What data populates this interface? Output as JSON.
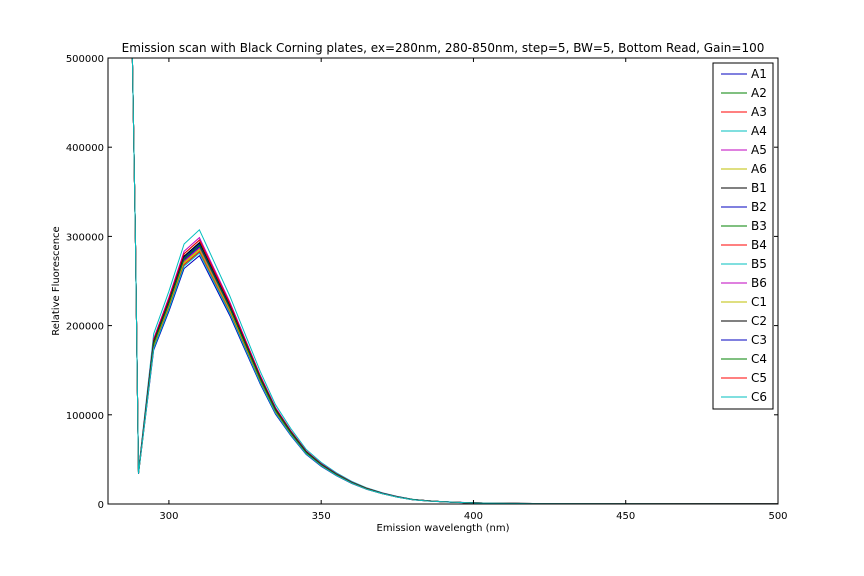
{
  "chart_data": {
    "type": "line",
    "title": "Emission scan with Black Corning plates, ex=280nm, 280-850nm, step=5, BW=5, Bottom Read, Gain=100",
    "xlabel": "Emission wavelength (nm)",
    "ylabel": "Relative Fluorescence",
    "xlim": [
      280,
      500
    ],
    "ylim": [
      0,
      500000
    ],
    "xticks": [
      300,
      350,
      400,
      450,
      500
    ],
    "yticks": [
      0,
      100000,
      200000,
      300000,
      400000,
      500000
    ],
    "grid": false,
    "legend_position": "top-right",
    "x": [
      288,
      289,
      290,
      295,
      300,
      305,
      310,
      315,
      320,
      325,
      330,
      335,
      340,
      345,
      350,
      355,
      360,
      365,
      370,
      375,
      380,
      385,
      390,
      395,
      400,
      410,
      420,
      450,
      500
    ],
    "base_curve": [
      500000,
      300000,
      35000,
      180000,
      225000,
      275000,
      290000,
      255000,
      220000,
      180000,
      140000,
      105000,
      80000,
      58000,
      44000,
      33000,
      24000,
      17000,
      12000,
      8000,
      5000,
      3500,
      2500,
      1800,
      1200,
      800,
      500,
      200,
      100
    ],
    "series": [
      {
        "name": "A1",
        "color": "#0000bf",
        "scale": 0.96
      },
      {
        "name": "A2",
        "color": "#008000",
        "scale": 0.99
      },
      {
        "name": "A3",
        "color": "#ff0000",
        "scale": 1.0
      },
      {
        "name": "A4",
        "color": "#00bfbf",
        "scale": 1.06
      },
      {
        "name": "A5",
        "color": "#bf00bf",
        "scale": 1.03
      },
      {
        "name": "A6",
        "color": "#bfbf00",
        "scale": 0.98
      },
      {
        "name": "B1",
        "color": "#000000",
        "scale": 1.02
      },
      {
        "name": "B2",
        "color": "#0000bf",
        "scale": 0.995
      },
      {
        "name": "B3",
        "color": "#008000",
        "scale": 1.01
      },
      {
        "name": "B4",
        "color": "#ff0000",
        "scale": 1.02
      },
      {
        "name": "B5",
        "color": "#00bfbf",
        "scale": 1.0
      },
      {
        "name": "B6",
        "color": "#bf00bf",
        "scale": 0.99
      },
      {
        "name": "C1",
        "color": "#bfbf00",
        "scale": 0.985
      },
      {
        "name": "C2",
        "color": "#000000",
        "scale": 1.01
      },
      {
        "name": "C3",
        "color": "#0000bf",
        "scale": 1.005
      },
      {
        "name": "C4",
        "color": "#008000",
        "scale": 1.0
      },
      {
        "name": "C5",
        "color": "#ff0000",
        "scale": 0.975
      },
      {
        "name": "C6",
        "color": "#00bfbf",
        "scale": 0.97
      }
    ]
  }
}
